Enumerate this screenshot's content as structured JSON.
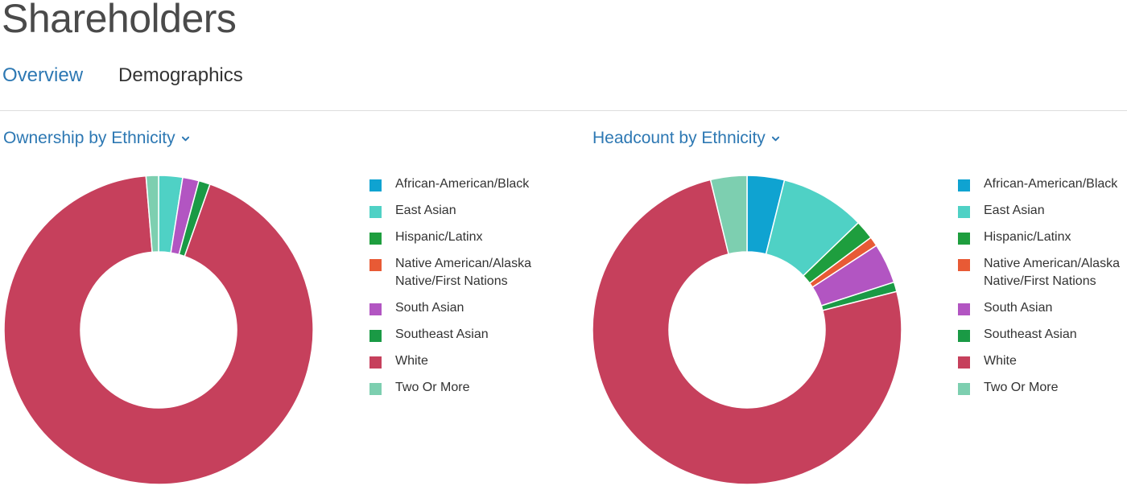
{
  "page": {
    "title": "Shareholders"
  },
  "tabs": [
    {
      "label": "Overview",
      "active": true
    },
    {
      "label": "Demographics",
      "active": false
    }
  ],
  "colors": {
    "African-American/Black": "#0fa3d1",
    "East Asian": "#4fd1c5",
    "Hispanic/Latinx": "#1e9e3e",
    "Native American/Alaska Native/First Nations": "#e85a35",
    "South Asian": "#b255c2",
    "Southeast Asian": "#1a9a45",
    "White": "#c6405c",
    "Two Or More": "#7dcfb0"
  },
  "chart_data": [
    {
      "type": "pie",
      "title": "Ownership by Ethnicity",
      "categories": [
        "African-American/Black",
        "East Asian",
        "Hispanic/Latinx",
        "Native American/Alaska Native/First Nations",
        "South Asian",
        "Southeast Asian",
        "White",
        "Two Or More"
      ],
      "values": [
        0,
        2.5,
        0,
        0,
        1.7,
        1.2,
        93.3,
        1.3
      ],
      "legend_position": "right"
    },
    {
      "type": "pie",
      "title": "Headcount by Ethnicity",
      "categories": [
        "African-American/Black",
        "East Asian",
        "Hispanic/Latinx",
        "Native American/Alaska Native/First Nations",
        "South Asian",
        "Southeast Asian",
        "White",
        "Two Or More"
      ],
      "values": [
        3.9,
        8.9,
        2.0,
        1.0,
        4.2,
        1.0,
        75.2,
        3.8
      ],
      "legend_position": "right"
    }
  ]
}
